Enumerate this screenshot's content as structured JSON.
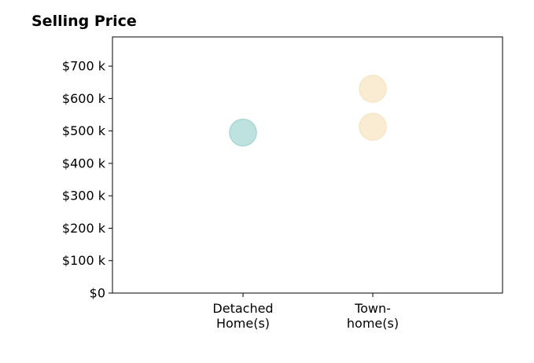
{
  "chart_data": {
    "type": "scatter",
    "title": "Selling Price",
    "xlabel": "",
    "ylabel": "",
    "categories": [
      [
        "Detached",
        "Home(s)"
      ],
      [
        "Town-",
        "home(s)"
      ]
    ],
    "ylim": [
      0,
      790
    ],
    "y_ticks": [
      0,
      100,
      200,
      300,
      400,
      500,
      600,
      700
    ],
    "y_tick_labels": [
      "$0",
      "$100 k",
      "$200 k",
      "$300 k",
      "$400 k",
      "$500 k",
      "$600 k",
      "$700 k"
    ],
    "grid": false,
    "points": [
      {
        "category": 0,
        "value": 495,
        "color": "#a8d8d4"
      },
      {
        "category": 1,
        "value": 630,
        "color": "#f7e6c4"
      },
      {
        "category": 1,
        "value": 513,
        "color": "#f7e6c4"
      }
    ]
  }
}
